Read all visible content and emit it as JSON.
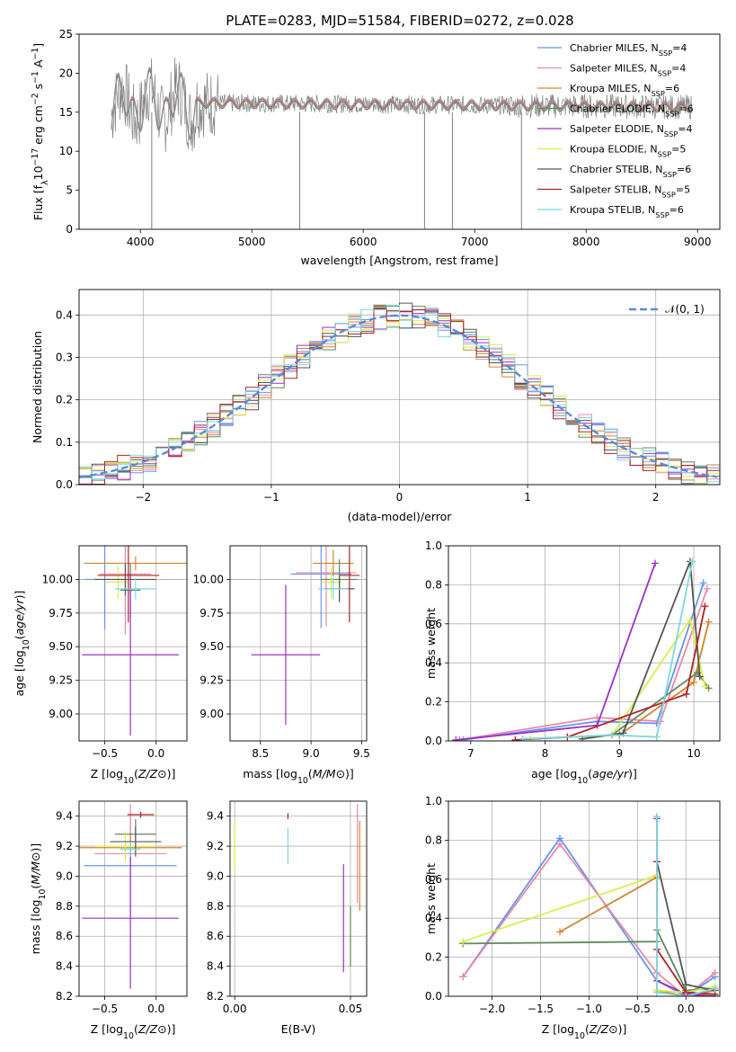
{
  "title": "PLATE=0283, MJD=51584, FIBERID=0272, z=0.028",
  "chart_data": [
    {
      "id": "spectrum",
      "type": "line",
      "xlabel": "wavelength [Angstrom, rest frame]",
      "ylabel": "Flux [f_λ 10^-17 erg cm^-2 s^-1 A^-1]",
      "xlim": [
        3450,
        9200
      ],
      "ylim": [
        0,
        25
      ],
      "xticks": [
        4000,
        5000,
        6000,
        7000,
        8000,
        9000
      ],
      "yticks": [
        0,
        5,
        10,
        15,
        20,
        25
      ],
      "data_color": "#808080",
      "legend": [
        {
          "base": "Chabrier MILES, N",
          "sub": "SSP",
          "rest": "=4",
          "color": "#6495ed"
        },
        {
          "base": "Salpeter MILES, N",
          "sub": "SSP",
          "rest": "=4",
          "color": "#e88aa8"
        },
        {
          "base": "Kroupa MILES, N",
          "sub": "SSP",
          "rest": "=6",
          "color": "#d2862a"
        },
        {
          "base": "Chabrier ELODIE, N",
          "sub": "SSP",
          "rest": "=6",
          "color": "#5f8a5f"
        },
        {
          "base": "Salpeter ELODIE, N",
          "sub": "SSP",
          "rest": "=4",
          "color": "#9932cc"
        },
        {
          "base": "Kroupa ELODIE, N",
          "sub": "SSP",
          "rest": "=5",
          "color": "#d8ee4a"
        },
        {
          "base": "Chabrier STELIB, N",
          "sub": "SSP",
          "rest": "=6",
          "color": "#555555"
        },
        {
          "base": "Salpeter STELIB, N",
          "sub": "SSP",
          "rest": "=5",
          "color": "#b22222"
        },
        {
          "base": "Kroupa STELIB, N",
          "sub": "SSP",
          "rest": "=6",
          "color": "#7fd8e0"
        }
      ],
      "legend_position": "upper right",
      "model_level": 15.6,
      "data_spike_wavelengths": [
        4102,
        5430,
        6550,
        6800,
        7420
      ]
    },
    {
      "id": "residuals",
      "type": "histogram",
      "xlabel": "(data-model)/error",
      "ylabel": "Normed distribution",
      "xlim": [
        -2.5,
        2.5
      ],
      "ylim": [
        0,
        0.46
      ],
      "xticks": [
        -2,
        -1,
        0,
        1,
        2
      ],
      "yticks": [
        0.0,
        0.1,
        0.2,
        0.3,
        0.4
      ],
      "reference_label": "𝒩(0, 1)",
      "reference_color": "#5b8bd9",
      "legend_position": "upper right",
      "bin_width": 0.1
    },
    {
      "id": "age-vs-Z",
      "type": "errorbar",
      "xlabel": "Z [log10(Z/Z⊙)]",
      "ylabel": "age [log10(age/yr)]",
      "xlim": [
        -0.75,
        0.3
      ],
      "ylim": [
        8.8,
        10.25
      ],
      "xticks": [
        -0.5,
        0.0
      ],
      "yticks": [
        9.0,
        9.25,
        9.5,
        9.75,
        10.0
      ],
      "points": [
        {
          "x": -0.5,
          "y": 10.0,
          "xerr": 0.2,
          "yerr": 0.37,
          "color": "#6495ed"
        },
        {
          "x": -0.3,
          "y": 10.04,
          "xerr": 0.25,
          "yerr": 0.45,
          "color": "#e88aa8"
        },
        {
          "x": -0.2,
          "y": 10.12,
          "xerr": 0.5,
          "yerr": 0.05,
          "color": "#d2862a"
        },
        {
          "x": -0.25,
          "y": 9.92,
          "xerr": 0.1,
          "yerr": 0.2,
          "color": "#5f8a5f"
        },
        {
          "x": -0.25,
          "y": 9.44,
          "xerr": 0.47,
          "yerr": 0.6,
          "color": "#9932cc"
        },
        {
          "x": -0.37,
          "y": 9.98,
          "xerr": 0.12,
          "yerr": 0.12,
          "color": "#d8ee4a"
        },
        {
          "x": -0.3,
          "y": 10.0,
          "xerr": 0.3,
          "yerr": 0.12,
          "color": "#555555"
        },
        {
          "x": -0.27,
          "y": 10.03,
          "xerr": 0.3,
          "yerr": 0.35,
          "color": "#b22222"
        },
        {
          "x": -0.2,
          "y": 9.93,
          "xerr": 0.2,
          "yerr": 0.08,
          "color": "#7fd8e0"
        }
      ]
    },
    {
      "id": "age-vs-mass",
      "type": "errorbar",
      "xlabel": "mass [log10(M/M⊙)]",
      "ylabel": "",
      "xlim": [
        8.2,
        9.55
      ],
      "ylim": [
        8.8,
        10.25
      ],
      "xticks": [
        8.5,
        9.0,
        9.5
      ],
      "yticks": [
        9.0,
        9.25,
        9.5,
        9.75,
        10.0
      ],
      "points": [
        {
          "x": 9.1,
          "y": 10.04,
          "xerr": 0.3,
          "yerr": 0.4,
          "color": "#6495ed"
        },
        {
          "x": 9.15,
          "y": 10.05,
          "xerr": 0.3,
          "yerr": 0.4,
          "color": "#e88aa8"
        },
        {
          "x": 9.22,
          "y": 10.12,
          "xerr": 0.2,
          "yerr": 0.1,
          "color": "#d2862a"
        },
        {
          "x": 9.28,
          "y": 10.0,
          "xerr": 0.18,
          "yerr": 0.15,
          "color": "#5f8a5f"
        },
        {
          "x": 8.75,
          "y": 9.44,
          "xerr": 0.34,
          "yerr": 0.52,
          "color": "#9932cc"
        },
        {
          "x": 9.2,
          "y": 9.98,
          "xerr": 0.1,
          "yerr": 0.12,
          "color": "#d8ee4a"
        },
        {
          "x": 9.28,
          "y": 9.93,
          "xerr": 0.15,
          "yerr": 0.1,
          "color": "#555555"
        },
        {
          "x": 9.38,
          "y": 10.03,
          "xerr": 0.1,
          "yerr": 0.35,
          "color": "#b22222"
        },
        {
          "x": 9.22,
          "y": 9.93,
          "xerr": 0.15,
          "yerr": 0.08,
          "color": "#7fd8e0"
        }
      ]
    },
    {
      "id": "weight-vs-age",
      "type": "line",
      "xlabel": "age [log10(age/yr)]",
      "ylabel": "mass weight",
      "xlim": [
        6.7,
        10.35
      ],
      "ylim": [
        0,
        1
      ],
      "xticks": [
        7,
        8,
        9,
        10
      ],
      "yticks": [
        0.0,
        0.2,
        0.4,
        0.6,
        0.8,
        1.0
      ],
      "series": [
        {
          "color": "#6495ed",
          "x": [
            6.9,
            8.7,
            9.5,
            10.13
          ],
          "y": [
            0.005,
            0.1,
            0.09,
            0.81
          ]
        },
        {
          "color": "#e88aa8",
          "x": [
            6.85,
            8.7,
            9.55,
            10.18
          ],
          "y": [
            0.005,
            0.12,
            0.1,
            0.78
          ]
        },
        {
          "color": "#d2862a",
          "x": [
            7.7,
            9.0,
            10.0,
            10.2
          ],
          "y": [
            0.01,
            0.03,
            0.3,
            0.61
          ]
        },
        {
          "color": "#5f8a5f",
          "x": [
            7.8,
            8.9,
            10.05,
            10.2
          ],
          "y": [
            0.01,
            0.03,
            0.35,
            0.27
          ]
        },
        {
          "color": "#9932cc",
          "x": [
            6.8,
            8.7,
            9.48
          ],
          "y": [
            0.005,
            0.08,
            0.91
          ]
        },
        {
          "color": "#d8ee4a",
          "x": [
            7.8,
            8.9,
            9.95,
            10.15
          ],
          "y": [
            0.01,
            0.03,
            0.62,
            0.28
          ]
        },
        {
          "color": "#555555",
          "x": [
            8.5,
            9.05,
            9.95,
            10.08
          ],
          "y": [
            0.01,
            0.04,
            0.92,
            0.33
          ]
        },
        {
          "color": "#b22222",
          "x": [
            7.6,
            8.3,
            9.9,
            10.15
          ],
          "y": [
            0.005,
            0.02,
            0.24,
            0.69
          ]
        },
        {
          "color": "#7fd8e0",
          "x": [
            7.7,
            8.9,
            9.5,
            9.98
          ],
          "y": [
            0.01,
            0.03,
            0.02,
            0.92
          ]
        }
      ]
    },
    {
      "id": "mass-vs-Z",
      "type": "errorbar",
      "xlabel": "Z [log10(Z/Z⊙)]",
      "ylabel": "mass [log10(M/M⊙)]",
      "xlim": [
        -0.75,
        0.3
      ],
      "ylim": [
        8.2,
        9.5
      ],
      "xticks": [
        -0.5,
        0.0
      ],
      "yticks": [
        8.2,
        8.4,
        8.6,
        8.8,
        9.0,
        9.2,
        9.4
      ],
      "points": [
        {
          "x": -0.25,
          "y": 9.07,
          "xerr": 0.45,
          "yerr": 0.35,
          "color": "#6495ed"
        },
        {
          "x": -0.25,
          "y": 9.15,
          "xerr": 0.35,
          "yerr": 0.33,
          "color": "#e88aa8"
        },
        {
          "x": -0.25,
          "y": 9.19,
          "xerr": 0.5,
          "yerr": 0.1,
          "color": "#d2862a"
        },
        {
          "x": -0.2,
          "y": 9.28,
          "xerr": 0.2,
          "yerr": 0.1,
          "color": "#5f8a5f"
        },
        {
          "x": -0.25,
          "y": 8.72,
          "xerr": 0.47,
          "yerr": 0.47,
          "color": "#9932cc"
        },
        {
          "x": -0.3,
          "y": 9.2,
          "xerr": 0.3,
          "yerr": 0.1,
          "color": "#d8ee4a"
        },
        {
          "x": -0.2,
          "y": 9.23,
          "xerr": 0.25,
          "yerr": 0.1,
          "color": "#555555"
        },
        {
          "x": -0.15,
          "y": 9.41,
          "xerr": 0.13,
          "yerr": 0.02,
          "color": "#b22222"
        },
        {
          "x": -0.25,
          "y": 9.18,
          "xerr": 0.1,
          "yerr": 0.05,
          "color": "#7fd8e0"
        }
      ]
    },
    {
      "id": "mass-vs-EBV",
      "type": "errorbar",
      "xlabel": "E(B-V)",
      "ylabel": "",
      "xlim": [
        -0.002,
        0.057
      ],
      "ylim": [
        8.2,
        9.5
      ],
      "xticks": [
        0.0,
        0.05
      ],
      "yticks": [
        8.2,
        8.4,
        8.6,
        8.8,
        9.0,
        9.2,
        9.4
      ],
      "points": [
        {
          "x": 0.0,
          "y": 9.2,
          "xerr": 0,
          "yerr": 0.17,
          "color": "#d8ee4a"
        },
        {
          "x": 0.023,
          "y": 9.2,
          "xerr": 0,
          "yerr": 0.12,
          "color": "#7fd8e0"
        },
        {
          "x": 0.023,
          "y": 9.4,
          "xerr": 0,
          "yerr": 0.02,
          "color": "#b22222"
        },
        {
          "x": 0.047,
          "y": 8.72,
          "xerr": 0,
          "yerr": 0.36,
          "color": "#9932cc"
        },
        {
          "x": 0.05,
          "y": 8.6,
          "xerr": 0,
          "yerr": 0.2,
          "color": "#5f8a5f"
        },
        {
          "x": 0.053,
          "y": 9.15,
          "xerr": 0,
          "yerr": 0.33,
          "color": "#e88aa8"
        },
        {
          "x": 0.054,
          "y": 9.07,
          "xerr": 0,
          "yerr": 0.3,
          "color": "#d2862a"
        }
      ]
    },
    {
      "id": "weight-vs-Z",
      "type": "line",
      "xlabel": "Z [log10(Z/Z⊙)]",
      "ylabel": "mass weight",
      "xlim": [
        -2.45,
        0.35
      ],
      "ylim": [
        0,
        1
      ],
      "xticks": [
        -2.0,
        -1.5,
        -1.0,
        -0.5,
        0.0
      ],
      "yticks": [
        0.0,
        0.2,
        0.4,
        0.6,
        0.8,
        1.0
      ],
      "series": [
        {
          "color": "#6495ed",
          "x": [
            -2.3,
            -1.3,
            -0.3,
            0.0,
            0.3
          ],
          "y": [
            0.1,
            0.81,
            0.08,
            0.0,
            0.1
          ]
        },
        {
          "color": "#e88aa8",
          "x": [
            -2.3,
            -1.3,
            -0.3,
            0.0,
            0.3
          ],
          "y": [
            0.1,
            0.78,
            0.12,
            0.0,
            0.12
          ]
        },
        {
          "color": "#d2862a",
          "x": [
            -1.3,
            -0.3,
            -0.3,
            0.0,
            0.3
          ],
          "y": [
            0.33,
            0.61,
            0.03,
            0.0,
            0.03
          ]
        },
        {
          "color": "#5f8a5f",
          "x": [
            -2.3,
            -0.3,
            -0.3,
            0.0,
            0.3
          ],
          "y": [
            0.27,
            0.28,
            0.34,
            0.03,
            0.04
          ]
        },
        {
          "color": "#9932cc",
          "x": [
            -0.3,
            -0.3,
            0.0,
            0.3
          ],
          "y": [
            0.91,
            0.08,
            0.01,
            0.0
          ]
        },
        {
          "color": "#d8ee4a",
          "x": [
            -2.3,
            -0.3,
            -0.3,
            0.0,
            0.3
          ],
          "y": [
            0.28,
            0.62,
            0.03,
            0.02,
            0.05
          ]
        },
        {
          "color": "#555555",
          "x": [
            -0.3,
            -0.3,
            0.0,
            0.3
          ],
          "y": [
            0.92,
            0.69,
            0.06,
            0.03
          ]
        },
        {
          "color": "#b22222",
          "x": [
            -0.3,
            -0.3,
            0.0,
            0.3
          ],
          "y": [
            0.69,
            0.24,
            0.02,
            0.01
          ]
        },
        {
          "color": "#7fd8e0",
          "x": [
            -0.3,
            -0.3,
            0.0,
            0.3
          ],
          "y": [
            0.92,
            0.02,
            0.0,
            0.04
          ]
        }
      ]
    }
  ]
}
